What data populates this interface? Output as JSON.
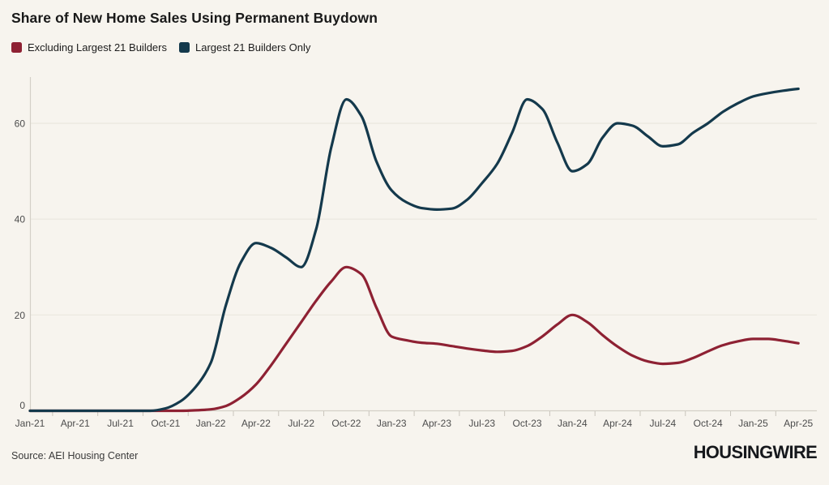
{
  "header": {
    "title": "Share of New Home Sales Using Permanent Buydown"
  },
  "legend": {
    "items": [
      {
        "id": "excluding-largest-21",
        "label": "Excluding Largest 21 Builders",
        "color": "#8e2133"
      },
      {
        "id": "largest-21-only",
        "label": "Largest 21 Builders Only",
        "color": "#14394c"
      }
    ]
  },
  "footer": {
    "source": "Source: AEI Housing Center",
    "logo": "HOUSINGWIRE"
  },
  "colors": {
    "background": "#f7f4ee",
    "title_text": "#191919",
    "legend_text": "#1c1c1c",
    "axis_label_text": "#4c4c4c",
    "source_text": "#3a3a3a",
    "logo_text": "#16181c",
    "gridline": "#eae7df",
    "baseline": "#d4d0c7",
    "tick": "#c9c5bc",
    "series_red": "#8e2133",
    "series_blue": "#14394c"
  },
  "chart_data": {
    "type": "line",
    "title": "Share of New Home Sales Using Permanent Buydown",
    "xlabel": "",
    "ylabel": "",
    "ylim": [
      0,
      70
    ],
    "y_ticks": [
      0,
      20,
      40,
      60
    ],
    "y_tick_labels": [
      "0",
      "20",
      "40",
      "60"
    ],
    "x_tick_labels": [
      "Jan-21",
      "Apr-21",
      "Jul-21",
      "Oct-21",
      "Jan-22",
      "Apr-22",
      "Jul-22",
      "Oct-22",
      "Jan-23",
      "Apr-23",
      "Jul-23",
      "Oct-23",
      "Jan-24",
      "Apr-24",
      "Jul-24",
      "Oct-24",
      "Jan-25",
      "Apr-25"
    ],
    "grid": "horizontal",
    "legend_position": "top-left",
    "x": [
      "Jan-21",
      "Feb-21",
      "Mar-21",
      "Apr-21",
      "May-21",
      "Jun-21",
      "Jul-21",
      "Aug-21",
      "Sep-21",
      "Oct-21",
      "Nov-21",
      "Dec-21",
      "Jan-22",
      "Feb-22",
      "Mar-22",
      "Apr-22",
      "May-22",
      "Jun-22",
      "Jul-22",
      "Aug-22",
      "Sep-22",
      "Oct-22",
      "Nov-22",
      "Dec-22",
      "Jan-23",
      "Feb-23",
      "Mar-23",
      "Apr-23",
      "May-23",
      "Jun-23",
      "Jul-23",
      "Aug-23",
      "Sep-23",
      "Oct-23",
      "Nov-23",
      "Dec-23",
      "Jan-24",
      "Feb-24",
      "Mar-24",
      "Apr-24",
      "May-24",
      "Jun-24",
      "Jul-24",
      "Aug-24",
      "Sep-24",
      "Oct-24",
      "Nov-24",
      "Dec-24",
      "Jan-25",
      "Feb-25",
      "Mar-25",
      "Apr-25"
    ],
    "series": [
      {
        "name": "Excluding Largest 21 Builders",
        "id": "excluding-largest-21",
        "color": "#8e2133",
        "values": [
          0,
          0,
          0,
          0,
          0,
          0,
          0,
          0,
          0,
          0,
          0,
          0.1,
          0.3,
          1,
          2.8,
          5.5,
          9.5,
          14,
          18.5,
          23,
          27,
          30,
          28.5,
          21.5,
          15.5,
          14.7,
          14.2,
          14,
          13.5,
          13,
          12.6,
          12.3,
          12.5,
          13.5,
          15.5,
          18,
          20,
          18.5,
          15.8,
          13.4,
          11.5,
          10.3,
          9.8,
          10,
          11,
          12.4,
          13.7,
          14.5,
          15,
          15,
          14.6,
          14.1
        ]
      },
      {
        "name": "Largest 21 Builders Only",
        "id": "largest-21-only",
        "color": "#14394c",
        "values": [
          0,
          0,
          0,
          0,
          0,
          0,
          0,
          0,
          0,
          0.5,
          2,
          5,
          10,
          22,
          31,
          35,
          34,
          32,
          30,
          38,
          55,
          65,
          61.5,
          52,
          46,
          43.5,
          42.3,
          42,
          42.2,
          44,
          47.5,
          51.5,
          58,
          65,
          63,
          56,
          50,
          51.5,
          57,
          60,
          59.5,
          57.3,
          55.2,
          55.6,
          58,
          60,
          62.4,
          64.2,
          65.6,
          66.3,
          66.8,
          67.2
        ]
      }
    ]
  }
}
